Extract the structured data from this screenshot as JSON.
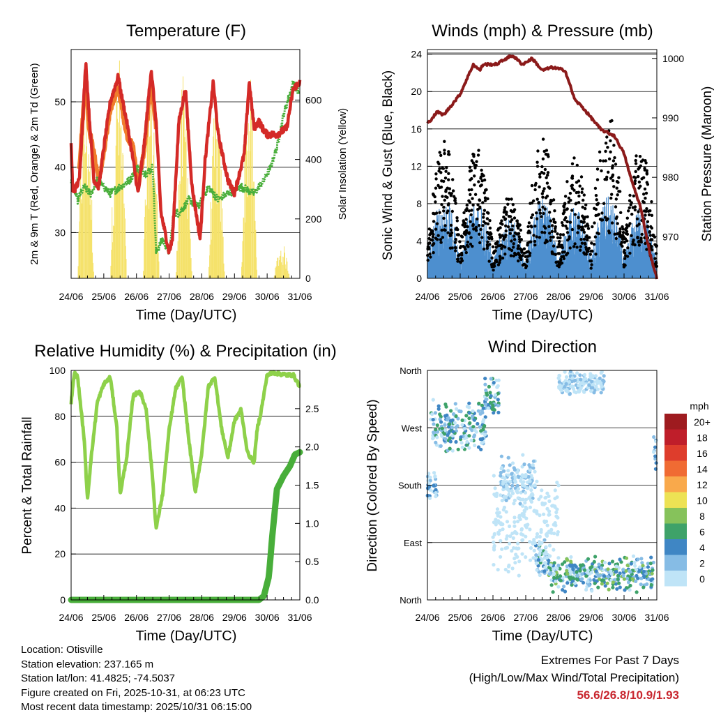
{
  "chart_data": [
    {
      "type": "line",
      "title": "Temperature (F)",
      "xlabel": "Time (Day/UTC)",
      "ylabel": "2m & 9m T (Red, Orange) & 2m Td (Green)",
      "ylabel_right": "Solar Insolation (Yellow)",
      "x_ticks": [
        "24/06",
        "25/06",
        "26/06",
        "27/06",
        "28/06",
        "29/06",
        "30/06",
        "31/06"
      ],
      "y_ticks": [
        "30",
        "40",
        "50"
      ],
      "y_right_ticks": [
        "0",
        "200",
        "400",
        "600"
      ],
      "ylim": [
        23,
        58
      ],
      "y_right_lim": [
        0,
        770
      ],
      "grid": true,
      "series": [
        {
          "name": "2m T",
          "color": "#d42a27",
          "x": [
            0,
            0.05,
            0.25,
            0.45,
            0.55,
            0.7,
            0.85,
            1.0,
            1.2,
            1.45,
            1.5,
            1.7,
            1.9,
            2.05,
            2.25,
            2.45,
            2.6,
            2.75,
            3.0,
            3.1,
            3.3,
            3.5,
            3.7,
            3.95,
            4.1,
            4.35,
            4.5,
            4.8,
            5.0,
            5.3,
            5.45,
            5.6,
            5.75,
            5.85,
            6.0,
            6.3,
            6.6,
            6.8,
            7.0
          ],
          "values": [
            44,
            36,
            38,
            56,
            48,
            38,
            37,
            43,
            50,
            54,
            52,
            47,
            41,
            36,
            44,
            55,
            47,
            33,
            27,
            29,
            47,
            52,
            37,
            29,
            41,
            53,
            45,
            38,
            36,
            42,
            53,
            46,
            47,
            46,
            45,
            45,
            46,
            52,
            53
          ]
        },
        {
          "name": "9m T",
          "color": "#f07d2c",
          "x": [
            0.25,
            0.45,
            0.55,
            0.7,
            0.85,
            1.0,
            1.2,
            1.45,
            1.7,
            1.9,
            2.05,
            2.25,
            2.45,
            2.6
          ],
          "values": [
            40,
            54,
            46,
            42,
            38,
            42,
            49,
            52,
            45,
            43,
            37,
            43,
            53,
            46
          ]
        },
        {
          "name": "2m Td",
          "color": "#48ae3a",
          "x": [
            0,
            0.2,
            0.4,
            0.6,
            0.8,
            1.0,
            1.2,
            1.5,
            1.8,
            2.0,
            2.3,
            2.5,
            2.6,
            2.8,
            3.0,
            3.15,
            3.3,
            3.6,
            3.9,
            4.2,
            4.5,
            4.8,
            5.2,
            5.6,
            5.9,
            6.1,
            6.3,
            6.5,
            6.8,
            7.0
          ],
          "values": [
            38,
            35,
            37,
            36,
            38,
            37,
            36,
            37,
            38,
            40,
            39,
            40,
            27,
            29,
            27,
            33,
            33,
            35,
            34,
            37,
            35,
            36,
            37,
            36,
            38,
            40,
            43,
            48,
            53,
            51
          ]
        },
        {
          "name": "Solar Insolation",
          "color": "#f5e26b",
          "axis": "right",
          "peaks_day": [
            0.45,
            1.45,
            2.45,
            3.45,
            4.45,
            5.45,
            6.45
          ],
          "peaks": [
            720,
            770,
            720,
            700,
            620,
            700,
            120
          ]
        }
      ]
    },
    {
      "type": "scatter",
      "title": "Winds (mph) & Pressure (mb)",
      "xlabel": "Time (Day/UTC)",
      "ylabel": "Sonic Wind & Gust (Blue, Black)",
      "ylabel_right": "Station Pressure (Maroon)",
      "x_ticks": [
        "24/06",
        "25/06",
        "26/06",
        "27/06",
        "28/06",
        "29/06",
        "30/06",
        "31/06"
      ],
      "y_ticks": [
        "0",
        "4",
        "8",
        "12",
        "16",
        "20",
        "24"
      ],
      "y_right_ticks": [
        "970",
        "980",
        "990",
        "1000"
      ],
      "ylim": [
        0,
        24.5
      ],
      "y_right_lim": [
        963,
        1001.5
      ],
      "grid": true,
      "series": [
        {
          "name": "Sonic Wind",
          "color": "#4d8fcf",
          "style": "band",
          "daily_peak": [
            8,
            8,
            6,
            8,
            7,
            8,
            7,
            7
          ]
        },
        {
          "name": "Gust",
          "color": "#000000",
          "style": "dots",
          "daily_peak": [
            15,
            14,
            9,
            15,
            13,
            18,
            14,
            19
          ]
        },
        {
          "name": "Station Pressure",
          "color": "#8b1a1a",
          "x": [
            0,
            0.3,
            0.5,
            1.0,
            1.4,
            1.6,
            1.7,
            2.1,
            2.4,
            2.6,
            2.9,
            3.2,
            3.5,
            3.8,
            4.2,
            4.5,
            4.7,
            5.0,
            5.3,
            5.7,
            6.0,
            6.2,
            6.5,
            6.8,
            7.0
          ],
          "values": [
            989,
            991,
            990.5,
            994,
            999,
            998,
            999,
            999,
            1000,
            1000.5,
            999,
            1000,
            998,
            998.5,
            998,
            993,
            992,
            990,
            988,
            987,
            984,
            980,
            975,
            967,
            963
          ]
        }
      ]
    },
    {
      "type": "line",
      "title": "Relative Humidity (%) & Precipitation (in)",
      "xlabel": "Time (Day/UTC)",
      "ylabel": "Percent & Total Rainfall",
      "x_ticks": [
        "24/06",
        "25/06",
        "26/06",
        "27/06",
        "28/06",
        "29/06",
        "30/06",
        "31/06"
      ],
      "y_ticks": [
        "0",
        "20",
        "40",
        "60",
        "80",
        "100"
      ],
      "y_right_ticks": [
        "0.0",
        "0.5",
        "1.0",
        "1.5",
        "2.0",
        "2.5"
      ],
      "ylim": [
        0,
        100
      ],
      "y_right_lim": [
        0,
        3.0
      ],
      "grid": true,
      "series": [
        {
          "name": "Relative Humidity",
          "color": "#8ed14a",
          "x": [
            0,
            0.1,
            0.2,
            0.4,
            0.5,
            0.6,
            0.8,
            1.0,
            1.2,
            1.4,
            1.5,
            1.7,
            1.9,
            2.1,
            2.3,
            2.5,
            2.6,
            2.8,
            3.0,
            3.2,
            3.4,
            3.6,
            3.8,
            4.0,
            4.2,
            4.4,
            4.6,
            4.8,
            5.0,
            5.2,
            5.4,
            5.6,
            5.7,
            5.8,
            6.0,
            6.2,
            6.6,
            6.8,
            7.0
          ],
          "values": [
            86,
            99,
            97,
            70,
            44,
            60,
            86,
            94,
            97,
            75,
            46,
            62,
            89,
            91,
            83,
            52,
            31,
            46,
            74,
            92,
            97,
            70,
            47,
            64,
            93,
            97,
            75,
            62,
            78,
            83,
            64,
            60,
            75,
            81,
            98,
            99,
            98,
            98,
            93
          ]
        },
        {
          "name": "Total Precipitation",
          "color": "#48ae3a",
          "axis": "right",
          "x": [
            0,
            5.75,
            5.9,
            6.05,
            6.15,
            6.3,
            6.5,
            6.7,
            6.85,
            7.0
          ],
          "values": [
            0,
            0,
            0.05,
            0.3,
            0.8,
            1.45,
            1.62,
            1.75,
            1.9,
            1.93
          ]
        }
      ]
    },
    {
      "type": "scatter",
      "title": "Wind Direction",
      "xlabel": "Time (Day/UTC)",
      "ylabel": "Direction (Colored By Speed)",
      "x_ticks": [
        "24/06",
        "25/06",
        "26/06",
        "27/06",
        "28/06",
        "29/06",
        "30/06",
        "31/06"
      ],
      "y_ticks": [
        "North",
        "East",
        "South",
        "West",
        "North"
      ],
      "ylim": [
        0,
        360
      ],
      "colorbar": {
        "title": "mph",
        "labels": [
          "20+",
          "18",
          "16",
          "14",
          "12",
          "10",
          "8",
          "6",
          "4",
          "2",
          "0"
        ],
        "colors": [
          "#9e1b1f",
          "#bf1e2a",
          "#de3d2c",
          "#f06b33",
          "#f9a94b",
          "#ede254",
          "#86c25b",
          "#3ea269",
          "#3f86c4",
          "#86bce5",
          "#bfe4f7"
        ]
      }
    }
  ],
  "footer": {
    "location": "Location: Otisville",
    "elevation": "Station elevation: 237.165 m",
    "latlon": "Station lat/lon: 41.4825; -74.5037",
    "created": "Figure created on Fri, 2025-10-31, at 06:23 UTC",
    "recent": "Most recent data timestamp: 2025/10/31 06:15:00"
  },
  "extremes": {
    "title": "Extremes For Past 7 Days",
    "subtitle": "(High/Low/Max Wind/Total Precipitation)",
    "values": "56.6/26.8/10.9/1.93"
  }
}
